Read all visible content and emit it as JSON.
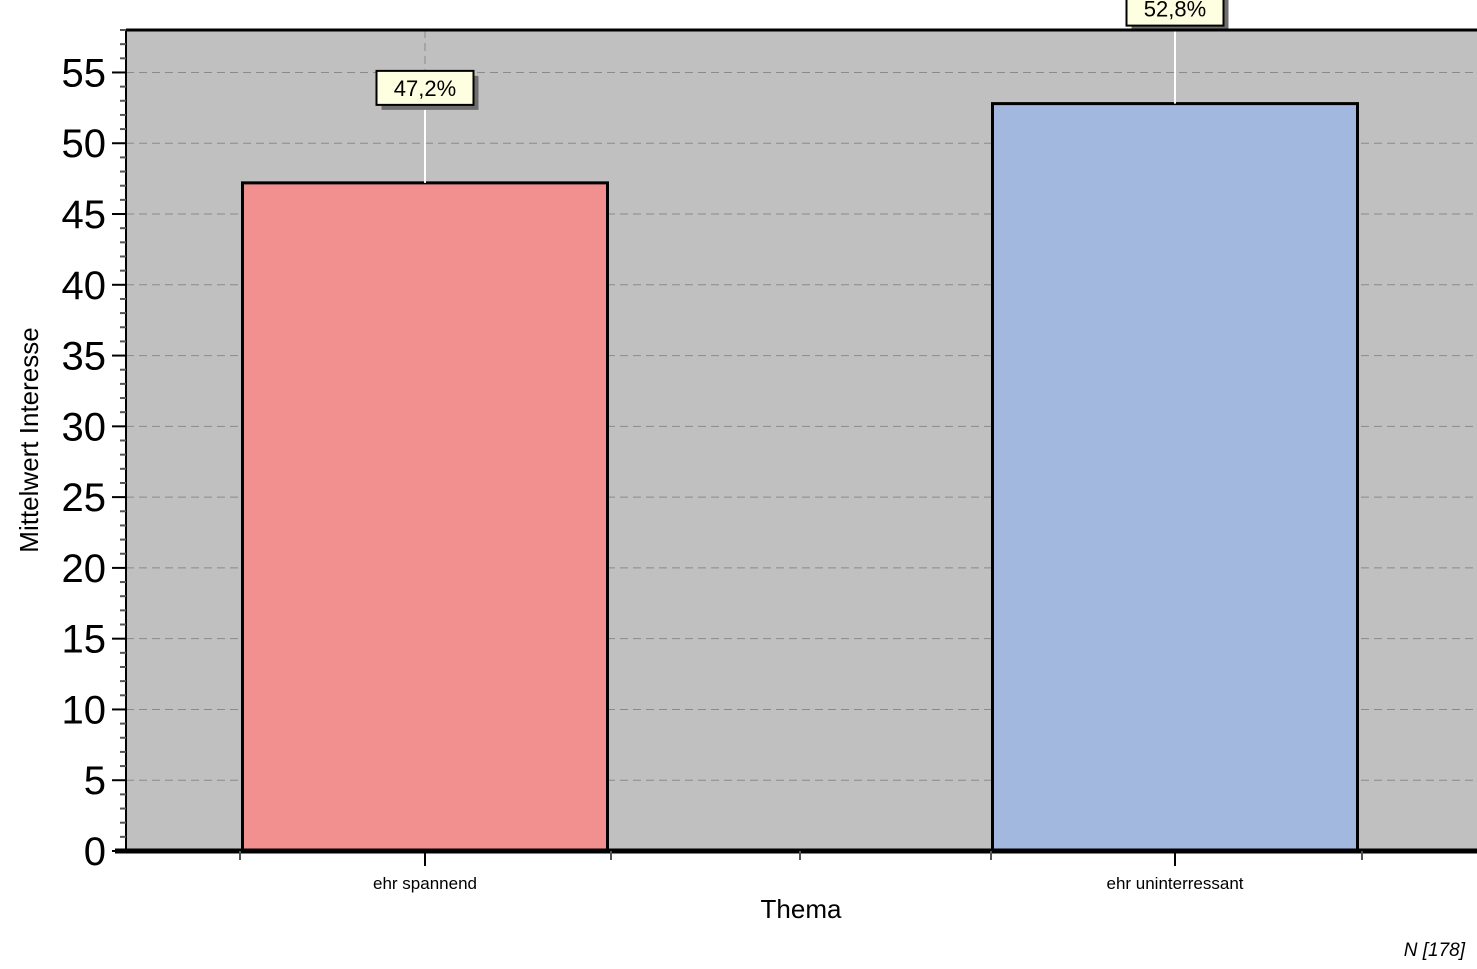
{
  "chart_data": {
    "type": "bar",
    "categories": [
      "ehr spannend",
      "ehr uninterressant"
    ],
    "values": [
      47.2,
      52.8
    ],
    "value_labels": [
      "47,2%",
      "52,8%"
    ],
    "colors": [
      "#f28f8f",
      "#a2b8df"
    ],
    "xlabel": "Thema",
    "ylabel": "Mittelwert Interesse",
    "ylim": [
      0,
      58
    ],
    "yticks": [
      0,
      5,
      10,
      15,
      20,
      25,
      30,
      35,
      40,
      45,
      50,
      55
    ],
    "grid": true,
    "plot_background": "#c0c0c0"
  },
  "footnote": "N [178]"
}
